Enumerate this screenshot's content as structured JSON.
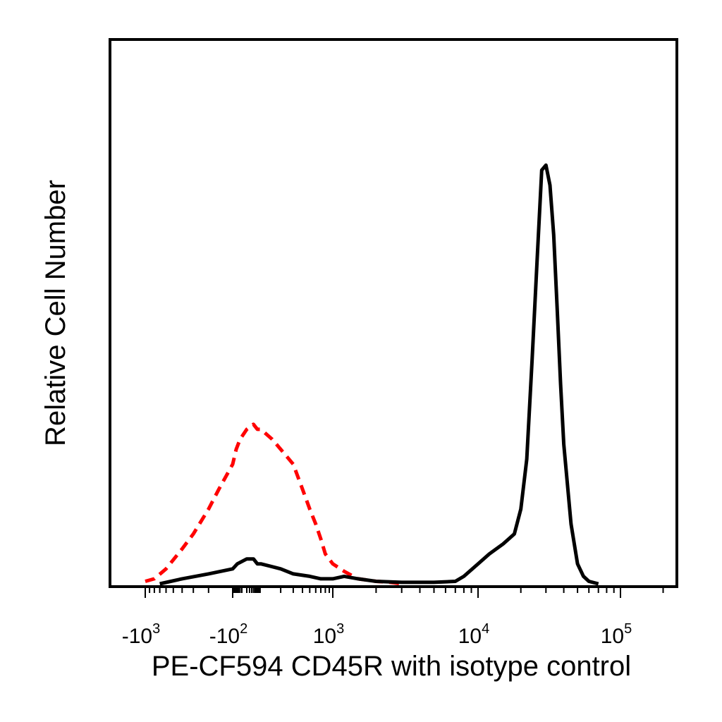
{
  "chart_data": {
    "type": "line",
    "title": "",
    "xlabel": "PE-CF594 CD45R with isotype control",
    "ylabel": "Relative Cell Number",
    "x_scale": "biexponential",
    "xlim": [
      -1500,
      250000
    ],
    "ylim": [
      0,
      100
    ],
    "grid": false,
    "legend": "none",
    "x_ticks": [
      {
        "value": -1000,
        "base": "-10",
        "exp": "3"
      },
      {
        "value": -100,
        "base": "-10",
        "exp": "2"
      },
      {
        "value": 1000,
        "base": "10",
        "exp": "3"
      },
      {
        "value": 10000,
        "base": "10",
        "exp": "4"
      },
      {
        "value": 100000,
        "base": "10",
        "exp": "5"
      }
    ],
    "series": [
      {
        "style": "dashed",
        "color": "#ff0000",
        "x": [
          -1000,
          -800,
          -600,
          -400,
          -300,
          -200,
          -150,
          -100,
          -60,
          -30,
          0,
          30,
          60,
          100,
          150,
          200,
          300,
          400,
          500,
          600,
          700,
          800,
          1000,
          1200,
          1500,
          2000,
          2500,
          3000
        ],
        "y": [
          0.5,
          1,
          3,
          7,
          10,
          15,
          19,
          24,
          27,
          29,
          31,
          32,
          31,
          31,
          29,
          27,
          24,
          19,
          15,
          12,
          9,
          6,
          4,
          2.5,
          1,
          0.5,
          0.3,
          0
        ]
      },
      {
        "style": "solid",
        "color": "#000000",
        "x": [
          -700,
          -400,
          -200,
          -100,
          -50,
          0,
          30,
          60,
          100,
          200,
          300,
          500,
          700,
          1000,
          1200,
          1500,
          2000,
          3000,
          5000,
          7000,
          8000,
          10000,
          12000,
          15000,
          18000,
          20000,
          22000,
          24000,
          26000,
          28000,
          30000,
          32000,
          34000,
          36000,
          38000,
          40000,
          45000,
          50000,
          55000,
          60000,
          70000
        ],
        "y": [
          0,
          1,
          2,
          3,
          4,
          5,
          5,
          4,
          4,
          3,
          2,
          1.5,
          1,
          1,
          1.5,
          1,
          0.5,
          0.3,
          0.3,
          0.5,
          1.5,
          4,
          6,
          8,
          10,
          15,
          25,
          45,
          65,
          83,
          84,
          80,
          70,
          55,
          40,
          28,
          12,
          4,
          1.5,
          0.5,
          0
        ]
      }
    ]
  }
}
